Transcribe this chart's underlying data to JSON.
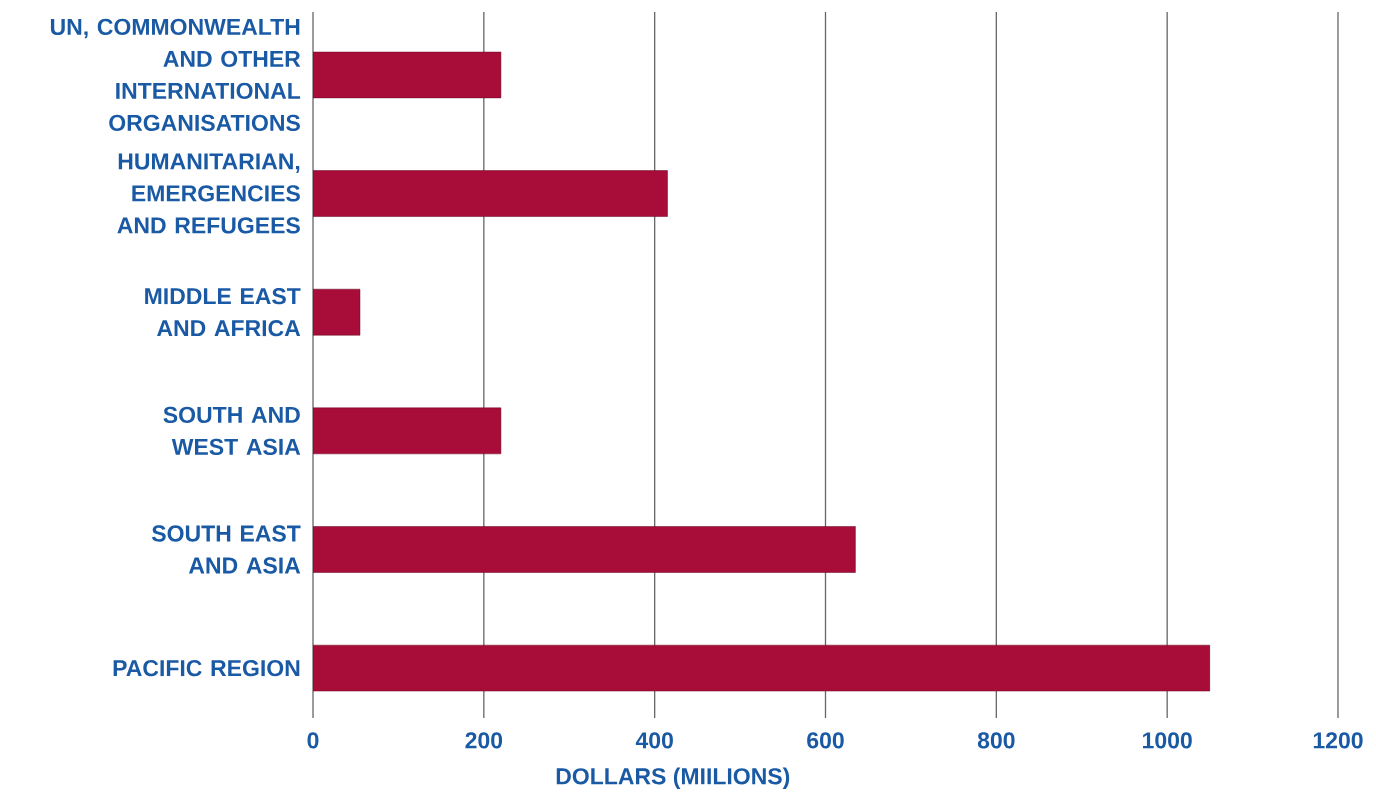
{
  "chart_data": {
    "type": "bar",
    "orientation": "horizontal",
    "xlabel": "DOLLARS (MIILIONS)",
    "categories": [
      "UN, COMMONWEALTH AND OTHER INTERNATIONAL ORGANISATIONS",
      "HUMANITARIAN, EMERGENCIES AND REFUGEES",
      "MIDDLE EAST AND AFRICA",
      "SOUTH AND WEST ASIA",
      "SOUTH EAST AND ASIA",
      "PACIFIC REGION"
    ],
    "values": [
      220,
      415,
      55,
      220,
      635,
      1050
    ],
    "color": "#a80c38",
    "xlim": [
      0,
      1200
    ],
    "xticks": [
      0,
      200,
      400,
      600,
      800,
      1000,
      1200
    ],
    "grid": "x"
  }
}
